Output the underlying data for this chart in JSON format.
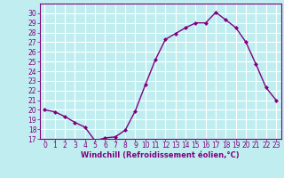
{
  "x": [
    0,
    1,
    2,
    3,
    4,
    5,
    6,
    7,
    8,
    9,
    10,
    11,
    12,
    13,
    14,
    15,
    16,
    17,
    18,
    19,
    20,
    21,
    22,
    23
  ],
  "y": [
    20,
    19.8,
    19.3,
    18.7,
    18.2,
    16.8,
    17.1,
    17.2,
    17.9,
    19.9,
    22.6,
    25.2,
    27.3,
    27.9,
    28.5,
    29.0,
    29.0,
    30.1,
    29.3,
    28.5,
    27.0,
    24.7,
    22.3,
    21.0
  ],
  "line_color": "#800080",
  "marker": "D",
  "marker_size": 2.0,
  "bg_color": "#c0eef0",
  "grid_color": "#ffffff",
  "xlabel": "Windchill (Refroidissement éolien,°C)",
  "xlabel_color": "#800080",
  "tick_color": "#800080",
  "spine_color": "#800080",
  "ylim": [
    17,
    31
  ],
  "xlim": [
    -0.5,
    23.5
  ],
  "yticks": [
    17,
    18,
    19,
    20,
    21,
    22,
    23,
    24,
    25,
    26,
    27,
    28,
    29,
    30
  ],
  "xticks": [
    0,
    1,
    2,
    3,
    4,
    5,
    6,
    7,
    8,
    9,
    10,
    11,
    12,
    13,
    14,
    15,
    16,
    17,
    18,
    19,
    20,
    21,
    22,
    23
  ],
  "tick_fontsize": 5.5,
  "xlabel_fontsize": 6.0,
  "xlabel_fontweight": "bold",
  "linewidth": 1.0
}
